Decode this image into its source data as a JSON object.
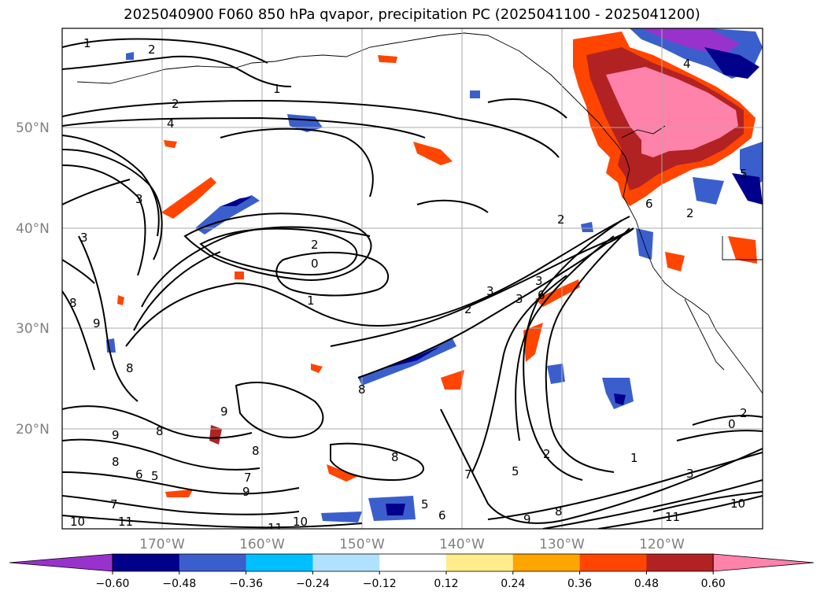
{
  "title": "2025040900 F060 850 hPa qvapor, precipitation PC (2025041100 - 2025041200)",
  "lat_labels": [
    "50°N",
    "40°N",
    "30°N",
    "20°N"
  ],
  "lon_labels": [
    "170°W",
    "160°W",
    "150°W",
    "140°W",
    "130°W",
    "120°W"
  ],
  "colorbar": {
    "tick_labels": [
      "−0.60",
      "−0.48",
      "−0.36",
      "−0.24",
      "−0.12",
      "0.12",
      "0.24",
      "0.36",
      "0.48",
      "0.60"
    ],
    "colors": [
      "#9932cc",
      "#00008b",
      "#3a5fcd",
      "#00bfff",
      "#b0e2ff",
      "#ffffff",
      "#ffec8b",
      "#ffa500",
      "#ff4500",
      "#b22222",
      "#ff82ab"
    ]
  },
  "contour_labels": [
    "1",
    "2",
    "2",
    "4",
    "1",
    "3",
    "3",
    "2",
    "0",
    "1",
    "2",
    "3",
    "3",
    "2",
    "3",
    "6",
    "8",
    "9",
    "8",
    "9",
    "9",
    "8",
    "8",
    "8",
    "7",
    "9",
    "6",
    "5",
    "7",
    "5",
    "6",
    "10",
    "11",
    "11",
    "10",
    "8",
    "8",
    "2",
    "1",
    "0",
    "2",
    "4",
    "5",
    "6",
    "2",
    "8",
    "9",
    "7",
    "5",
    "3",
    "10",
    "11"
  ]
}
